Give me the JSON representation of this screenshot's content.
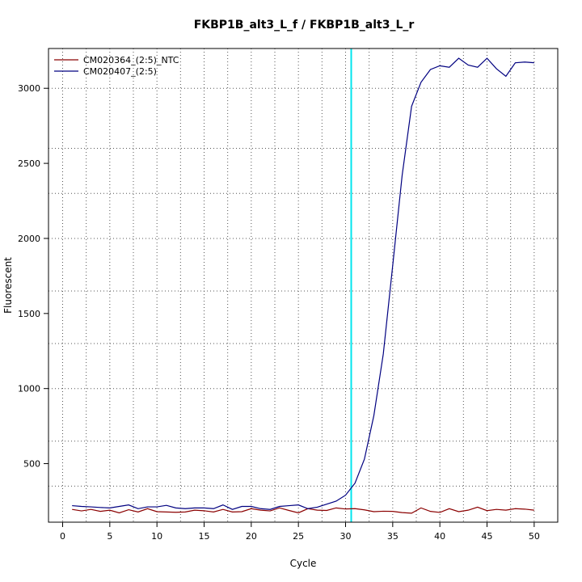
{
  "chart_data": {
    "type": "line",
    "title": "FKBP1B_alt3_L_f / FKBP1B_alt3_L_r",
    "xlabel": "Cycle",
    "ylabel": "Fluorescent",
    "xlim": [
      -1.5,
      52.5
    ],
    "ylim": [
      110,
      3265
    ],
    "x_ticks": [
      0,
      5,
      10,
      15,
      20,
      25,
      30,
      35,
      40,
      45,
      50
    ],
    "y_ticks": [
      500,
      1000,
      1500,
      2000,
      2500,
      3000
    ],
    "x_grid": [
      0,
      2.5,
      5,
      7.5,
      10,
      12.5,
      15,
      17.5,
      20,
      22.5,
      25,
      27.5,
      30,
      32.5,
      35,
      37.5,
      40,
      42.5,
      45,
      47.5,
      50
    ],
    "y_grid": [
      350,
      650,
      1000,
      1300,
      1650,
      2000,
      2300,
      2600,
      3000
    ],
    "grid": true,
    "legend_position": "top-left",
    "threshold_x": 30.6,
    "threshold_color": "#00e5ee",
    "x": [
      1,
      2,
      3,
      4,
      5,
      6,
      7,
      8,
      9,
      10,
      11,
      12,
      13,
      14,
      15,
      16,
      17,
      18,
      19,
      20,
      21,
      22,
      23,
      24,
      25,
      26,
      27,
      28,
      29,
      30,
      31,
      32,
      33,
      34,
      35,
      36,
      37,
      38,
      39,
      40,
      41,
      42,
      43,
      44,
      45,
      46,
      47,
      48,
      49,
      50
    ],
    "series": [
      {
        "name": "CM020364_(2:5)_NTC",
        "color": "#8b0000",
        "values": [
          195,
          185,
          195,
          182,
          190,
          172,
          193,
          178,
          200,
          180,
          178,
          176,
          178,
          190,
          186,
          178,
          195,
          178,
          180,
          200,
          190,
          185,
          205,
          188,
          172,
          200,
          190,
          188,
          205,
          198,
          200,
          192,
          180,
          183,
          182,
          174,
          170,
          205,
          182,
          175,
          200,
          180,
          190,
          210,
          187,
          195,
          190,
          200,
          197,
          190
        ]
      },
      {
        "name": "CM020407_(2:5)",
        "color": "#000080",
        "values": [
          220,
          215,
          212,
          208,
          205,
          215,
          225,
          200,
          212,
          212,
          222,
          205,
          200,
          205,
          205,
          200,
          225,
          195,
          215,
          215,
          200,
          195,
          215,
          220,
          225,
          200,
          210,
          230,
          250,
          290,
          370,
          530,
          820,
          1230,
          1820,
          2420,
          2880,
          3040,
          3125,
          3150,
          3140,
          3200,
          3155,
          3140,
          3200,
          3130,
          3080,
          3170,
          3175,
          3170
        ]
      }
    ]
  }
}
